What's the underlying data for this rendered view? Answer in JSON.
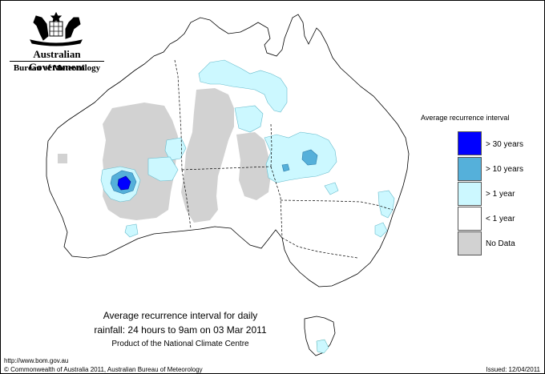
{
  "header": {
    "government": "Australian Government",
    "bureau": "Bureau of Meteorology"
  },
  "legend": {
    "title": "Average recurrence interval",
    "items": [
      {
        "label": "> 30 years",
        "color": "#0000ff"
      },
      {
        "label": "> 10 years",
        "color": "#55b0da"
      },
      {
        "label": "> 1 year",
        "color": "#ccf8ff"
      },
      {
        "label": "< 1 year",
        "color": "#ffffff"
      },
      {
        "label": "No Data",
        "color": "#d2d2d2"
      }
    ]
  },
  "caption": {
    "line1": "Average recurrence interval for daily",
    "line2": "rainfall: 24 hours to 9am on 03 Mar 2011",
    "line3": "Product of the National Climate Centre"
  },
  "footer": {
    "url": "http://www.bom.gov.au",
    "copyright": "© Commonwealth of Australia 2011, Australian Bureau of Meteorology",
    "issued": "Issued: 12/04/2011"
  }
}
